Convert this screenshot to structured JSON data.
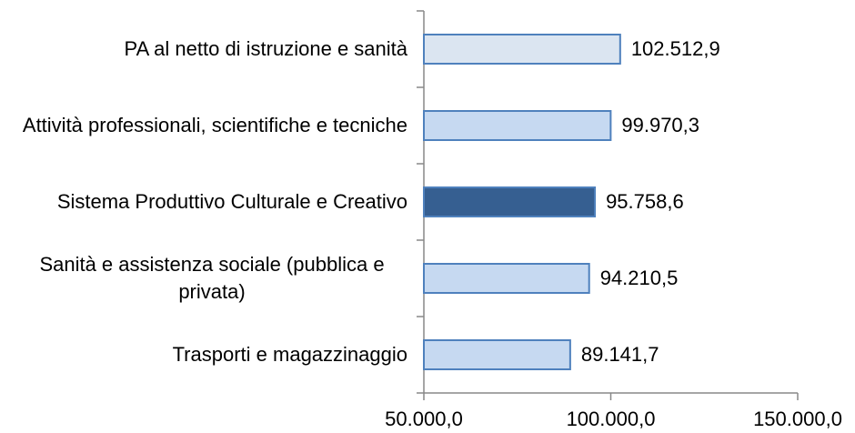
{
  "chart_data": {
    "type": "barh",
    "categories": [
      "PA al netto di istruzione e sanità",
      "Attività professionali, scientifiche e tecniche",
      "Sistema Produttivo Culturale e Creativo",
      "Sanità e assistenza sociale (pubblica e privata)",
      "Trasporti e magazzinaggio"
    ],
    "values": [
      102512.9,
      99970.3,
      95758.6,
      94210.5,
      89141.7
    ],
    "value_labels": [
      "102.512,9",
      "99.970,3",
      "95.758,6",
      "94.210,5",
      "89.141,7"
    ],
    "colors": [
      "#dbe5f1",
      "#c6d9f1",
      "#365f91",
      "#c6d9f1",
      "#c6d9f1"
    ],
    "border_color": "#4f81bd",
    "xlim": [
      50000,
      150000
    ],
    "xticks": [
      {
        "value": 50000,
        "label": "50.000,0"
      },
      {
        "value": 100000,
        "label": "100.000,0"
      },
      {
        "value": 150000,
        "label": "150.000,0"
      }
    ]
  }
}
